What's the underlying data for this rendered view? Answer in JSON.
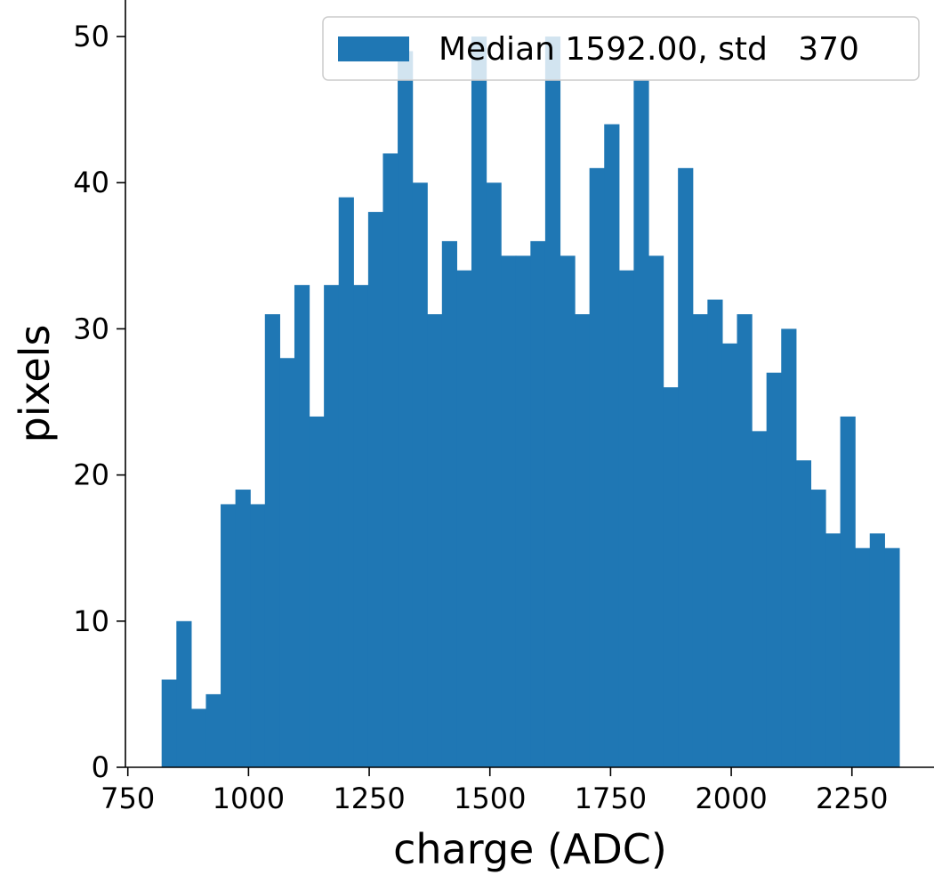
{
  "chart_data": {
    "type": "bar",
    "title": "",
    "xlabel": "charge (ADC)",
    "ylabel": "pixels",
    "xlim": [
      745,
      2420
    ],
    "ylim": [
      0,
      52.5
    ],
    "xticks": [
      750,
      1000,
      1250,
      1500,
      1750,
      2000,
      2250
    ],
    "yticks": [
      0,
      10,
      20,
      30,
      40,
      50
    ],
    "grid": false,
    "legend_position": "top-right",
    "color": "#1f77b4",
    "series": [
      {
        "name": "Median 1592.00, std   370",
        "bin_edges": [
          820,
          850.56,
          881.12,
          911.68,
          942.24,
          972.8,
          1003.36,
          1033.92,
          1064.48,
          1095.04,
          1125.6,
          1156.16,
          1186.72,
          1217.28,
          1247.84,
          1278.4,
          1308.96,
          1339.52,
          1370.08,
          1400.64,
          1431.2,
          1461.76,
          1492.32,
          1522.88,
          1553.44,
          1584,
          1614.56,
          1645.12,
          1675.68,
          1706.24,
          1736.8,
          1767.36,
          1797.92,
          1828.48,
          1859.04,
          1889.6,
          1920.16,
          1950.72,
          1981.28,
          2011.84,
          2042.4,
          2072.96,
          2103.52,
          2134.08,
          2164.64,
          2195.2,
          2225.76,
          2256.32,
          2286.88,
          2317.44,
          2348
        ],
        "counts": [
          6,
          10,
          4,
          5,
          18,
          19,
          18,
          31,
          28,
          33,
          24,
          33,
          39,
          33,
          38,
          42,
          49,
          40,
          31,
          36,
          34,
          50,
          40,
          35,
          35,
          36,
          50,
          35,
          31,
          41,
          44,
          34,
          47,
          35,
          26,
          41,
          31,
          32,
          29,
          31,
          23,
          27,
          30,
          21,
          19,
          16,
          24,
          15,
          16,
          15
        ]
      }
    ]
  }
}
